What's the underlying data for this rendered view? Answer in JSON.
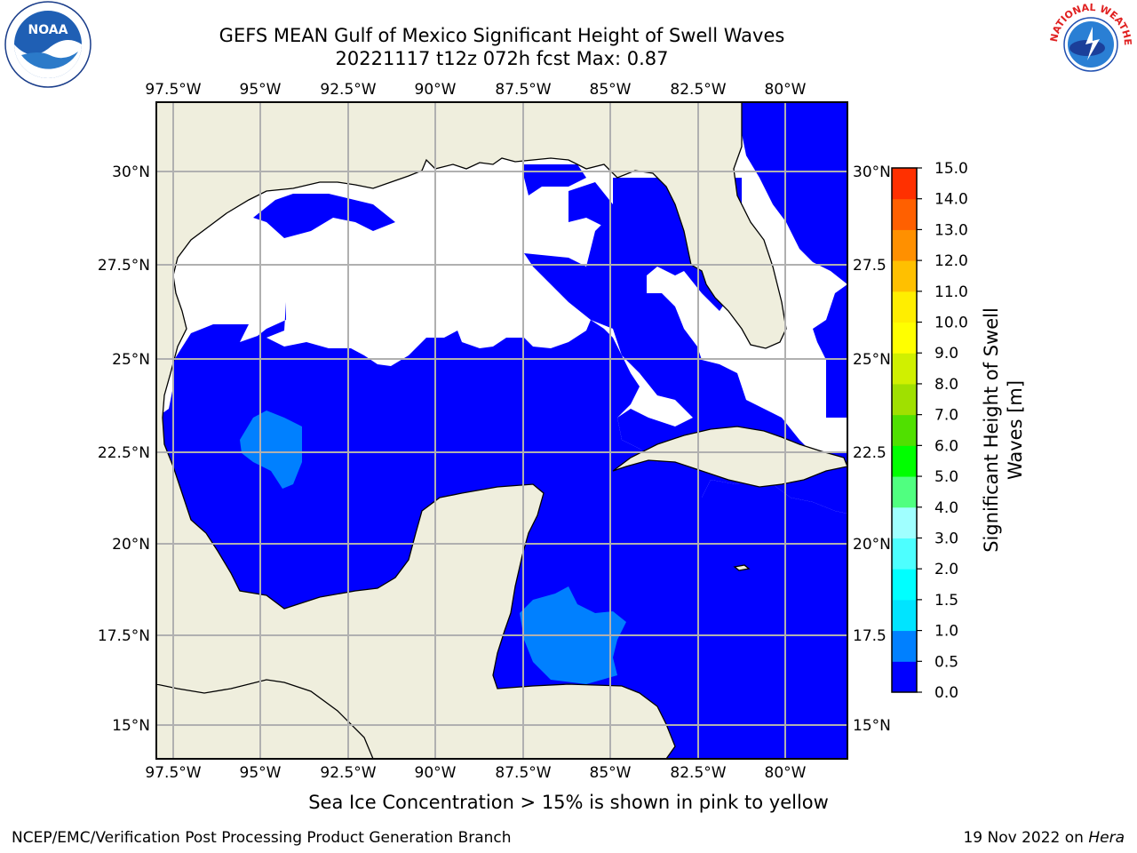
{
  "title": {
    "line1": "GEFS MEAN Gulf of Mexico Significant Height of Swell Waves",
    "line2": "20221117 t12z 072h fcst   Max: 0.87"
  },
  "map": {
    "lon_labels": [
      "97.5°W",
      "95°W",
      "92.5°W",
      "90°W",
      "87.5°W",
      "85°W",
      "82.5°W",
      "80°W"
    ],
    "lat_labels": [
      "30°N",
      "27.5°N",
      "25°N",
      "22.5°N",
      "20°N",
      "17.5°N",
      "15°N"
    ],
    "right_lat_labels": [
      "30°N",
      "27.5",
      "25°N",
      "22.5",
      "20°N",
      "17.5",
      "15°N"
    ],
    "colors": {
      "land": "#efeedd",
      "ocean_low": "#0000ff",
      "ocean_mid": "#0080ff",
      "white": "#ffffff",
      "grid": "#b0b0b0"
    }
  },
  "colorbar": {
    "label_line1": "Significant Height of Swell",
    "label_line2": "Waves [m]",
    "ticks": [
      "0.0",
      "0.5",
      "1.0",
      "1.5",
      "2.0",
      "3.0",
      "4.0",
      "5.0",
      "6.0",
      "7.0",
      "8.0",
      "9.0",
      "10.0",
      "11.0",
      "12.0",
      "13.0",
      "14.0",
      "15.0"
    ],
    "colors": [
      "#0000ff",
      "#0080ff",
      "#00e4ff",
      "#00ffff",
      "#4dffff",
      "#a0ffff",
      "#50ff80",
      "#00ff00",
      "#50e000",
      "#a0e000",
      "#d0f000",
      "#ffff00",
      "#ffee00",
      "#ffc000",
      "#ff9000",
      "#ff6000",
      "#ff3000",
      "#ff0000"
    ]
  },
  "note": "Sea Ice Concentration > 15% is shown in pink to yellow",
  "footer": {
    "left": "NCEP/EMC/Verification Post Processing Product Generation Branch",
    "right_prefix": "19 Nov 2022 on ",
    "right_host": "Hera"
  },
  "logos": {
    "noaa_text": "NOAA",
    "nws_text": "NATIONAL WEATHER SERVICE"
  }
}
